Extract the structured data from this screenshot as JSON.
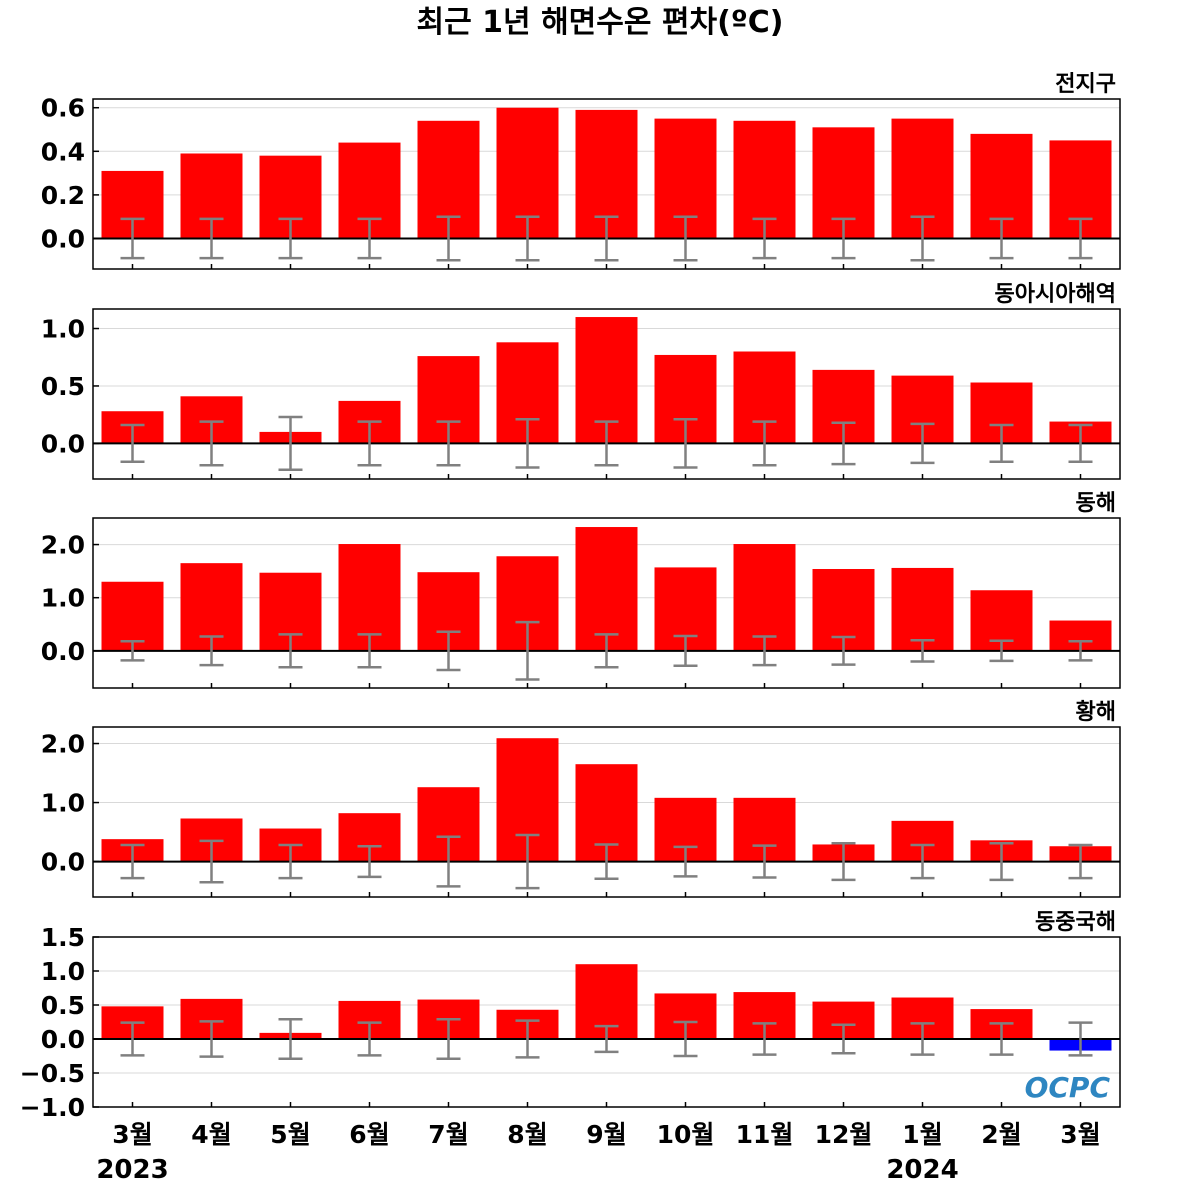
{
  "chart_data": {
    "type": "bar",
    "title": "최근 1년 해면수온 편차(ºC)",
    "categories": [
      "3월",
      "4월",
      "5월",
      "6월",
      "7월",
      "8월",
      "9월",
      "10월",
      "11월",
      "12월",
      "1월",
      "2월",
      "3월"
    ],
    "year_labels": [
      {
        "text": "2023",
        "category_index": 0
      },
      {
        "text": "2024",
        "category_index": 10
      }
    ],
    "colors": {
      "positive": "#ff0000",
      "negative": "#0000ff",
      "error_bar": "#808080",
      "zero_line": "#000000",
      "grid": "#d9d9d9"
    },
    "logo": "OCPC",
    "panels": [
      {
        "label": "전지구",
        "ylim": [
          -0.14,
          0.64
        ],
        "yticks": [
          0.0,
          0.2,
          0.4,
          0.6
        ],
        "ytick_labels": [
          "0.0",
          "0.2",
          "0.4",
          "0.6"
        ],
        "values": [
          0.31,
          0.39,
          0.38,
          0.44,
          0.54,
          0.6,
          0.59,
          0.55,
          0.54,
          0.51,
          0.55,
          0.48,
          0.45
        ],
        "error_range": [
          0.09,
          0.09,
          0.09,
          0.09,
          0.1,
          0.1,
          0.1,
          0.1,
          0.09,
          0.09,
          0.1,
          0.09,
          0.09
        ]
      },
      {
        "label": "동아시아해역",
        "ylim": [
          -0.31,
          1.17
        ],
        "yticks": [
          0.0,
          0.5,
          1.0
        ],
        "ytick_labels": [
          "0.0",
          "0.5",
          "1.0"
        ],
        "values": [
          0.28,
          0.41,
          0.1,
          0.37,
          0.76,
          0.88,
          1.1,
          0.77,
          0.8,
          0.64,
          0.59,
          0.53,
          0.19
        ],
        "error_range": [
          0.16,
          0.19,
          0.23,
          0.19,
          0.19,
          0.21,
          0.19,
          0.21,
          0.19,
          0.18,
          0.17,
          0.16,
          0.16
        ]
      },
      {
        "label": "동해",
        "ylim": [
          -0.7,
          2.5
        ],
        "yticks": [
          0.0,
          1.0,
          2.0
        ],
        "ytick_labels": [
          "0.0",
          "1.0",
          "2.0"
        ],
        "values": [
          1.3,
          1.65,
          1.47,
          2.01,
          1.48,
          1.78,
          2.33,
          1.57,
          2.01,
          1.54,
          1.56,
          1.14,
          0.57
        ],
        "error_range": [
          0.18,
          0.27,
          0.31,
          0.31,
          0.36,
          0.54,
          0.31,
          0.28,
          0.27,
          0.26,
          0.2,
          0.19,
          0.18
        ]
      },
      {
        "label": "황해",
        "ylim": [
          -0.6,
          2.28
        ],
        "yticks": [
          0.0,
          1.0,
          2.0
        ],
        "ytick_labels": [
          "0.0",
          "1.0",
          "2.0"
        ],
        "values": [
          0.38,
          0.73,
          0.56,
          0.82,
          1.26,
          2.09,
          1.65,
          1.08,
          1.08,
          0.29,
          0.69,
          0.36,
          0.26
        ],
        "error_range": [
          0.28,
          0.35,
          0.28,
          0.26,
          0.42,
          0.45,
          0.29,
          0.25,
          0.27,
          0.31,
          0.28,
          0.31,
          0.28
        ]
      },
      {
        "label": "동중국해",
        "ylim": [
          -1.0,
          1.5
        ],
        "yticks": [
          -1.0,
          -0.5,
          0.0,
          0.5,
          1.0,
          1.5
        ],
        "ytick_labels": [
          "−1.0",
          "−0.5",
          "0.0",
          "0.5",
          "1.0",
          "1.5"
        ],
        "values": [
          0.48,
          0.59,
          0.09,
          0.56,
          0.58,
          0.43,
          1.1,
          0.67,
          0.69,
          0.55,
          0.61,
          0.44,
          -0.17
        ],
        "error_range": [
          0.24,
          0.26,
          0.29,
          0.24,
          0.29,
          0.27,
          0.19,
          0.25,
          0.23,
          0.21,
          0.23,
          0.23,
          0.24
        ]
      }
    ]
  }
}
